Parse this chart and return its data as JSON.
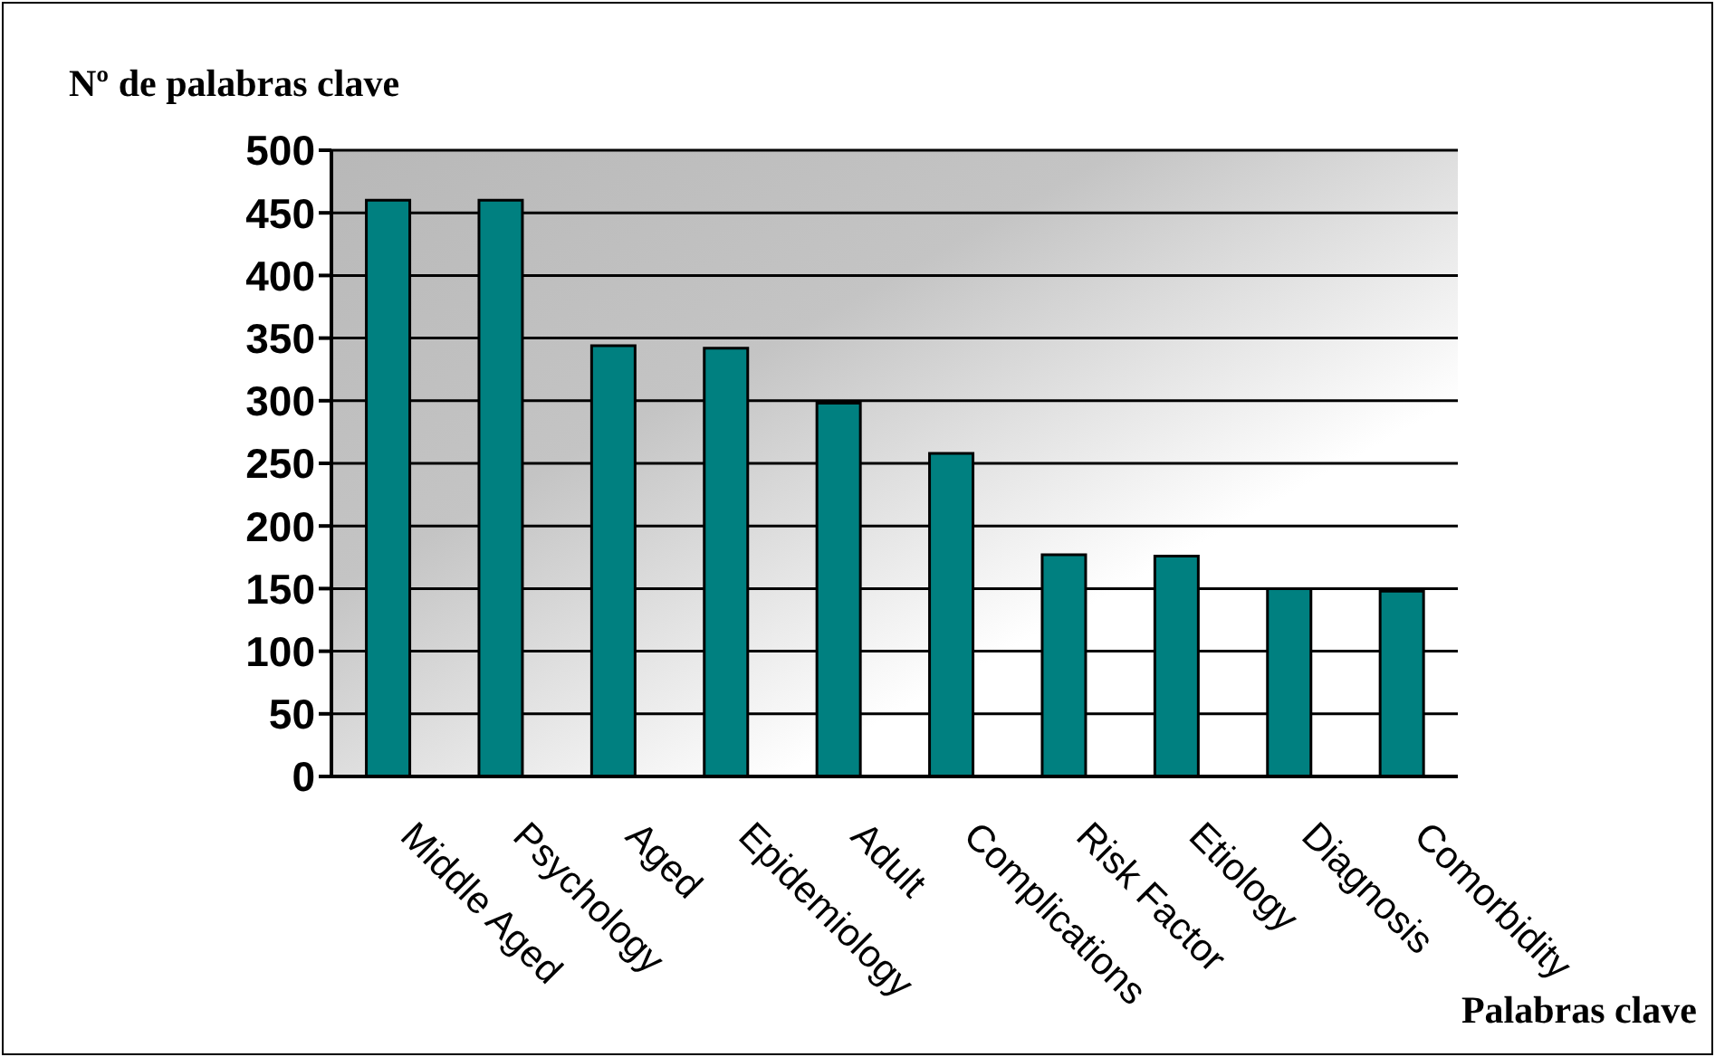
{
  "chart_data": {
    "type": "bar",
    "ylabel": "Nº de palabras clave",
    "xlabel": "Palabras clave",
    "categories": [
      "Middle Aged",
      "Psychology",
      "Aged",
      "Epidemiology",
      "Adult",
      "Complications",
      "Risk Factor",
      "Etiology",
      "Diagnosis",
      "Comorbidity"
    ],
    "values": [
      460,
      460,
      344,
      342,
      298,
      258,
      177,
      176,
      150,
      148
    ],
    "color": "#008080",
    "ylim": [
      0,
      500
    ],
    "yticks": [
      0,
      50,
      100,
      150,
      200,
      250,
      300,
      350,
      400,
      450,
      500
    ],
    "grid": "y"
  }
}
